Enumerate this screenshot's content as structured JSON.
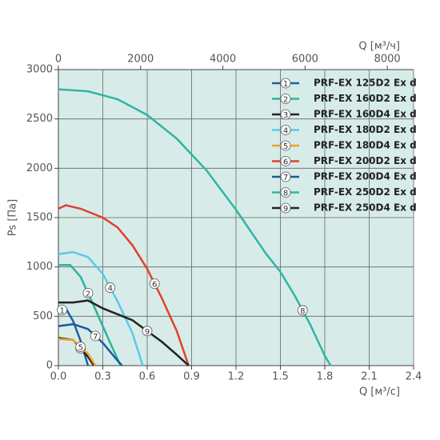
{
  "chart_data": {
    "type": "line",
    "x_label": "Q [м³/с]",
    "x2_label": "Q [м³/ч]",
    "y_label": "Ps [Па]",
    "xlim": [
      0,
      2.4
    ],
    "xticks": [
      {
        "value": 0,
        "label": "0.0"
      },
      0.3,
      0.6,
      0.9,
      1.2,
      1.5,
      1.8,
      2.1,
      2.4
    ],
    "x2lim": [
      0,
      8640
    ],
    "x2ticks": [
      0,
      2000,
      4000,
      6000,
      8000
    ],
    "ylim": [
      0,
      3000
    ],
    "yticks": [
      0,
      500,
      1000,
      1500,
      2000,
      2500,
      3000
    ],
    "grid": true,
    "background": "#d7ece8",
    "legend": "top-right",
    "series": [
      {
        "marker": "1",
        "name": "PRF-EX 125D2 Ex d",
        "color": "#1f5fa8",
        "x": [
          0,
          0.05,
          0.1,
          0.15,
          0.2
        ],
        "values": [
          550,
          580,
          450,
          250,
          0
        ]
      },
      {
        "marker": "2",
        "name": "PRF-EX 160D2 Ex d",
        "color": "#2bb3a0",
        "x": [
          0,
          0.08,
          0.15,
          0.25,
          0.35,
          0.42
        ],
        "values": [
          1020,
          1020,
          900,
          570,
          230,
          0
        ]
      },
      {
        "marker": "3",
        "name": "PRF-EX 160D4 Ex d",
        "color": "#222222",
        "x": [
          0,
          0.1,
          0.2,
          0.24
        ],
        "values": [
          280,
          260,
          90,
          0
        ]
      },
      {
        "marker": "4",
        "name": "PRF-EX 180D2 Ex d",
        "color": "#5bc8e8",
        "x": [
          0,
          0.1,
          0.2,
          0.3,
          0.4,
          0.5,
          0.57
        ],
        "values": [
          1130,
          1150,
          1100,
          930,
          650,
          330,
          0
        ]
      },
      {
        "marker": "5",
        "name": "PRF-EX 180D4 Ex d",
        "color": "#f0a030",
        "x": [
          0,
          0.1,
          0.2,
          0.25
        ],
        "values": [
          270,
          260,
          120,
          0
        ]
      },
      {
        "marker": "6",
        "name": "PRF-EX 200D2 Ex d",
        "color": "#e04030",
        "x": [
          0,
          0.05,
          0.15,
          0.3,
          0.4,
          0.5,
          0.6,
          0.7,
          0.8,
          0.88
        ],
        "values": [
          1590,
          1625,
          1590,
          1500,
          1400,
          1220,
          980,
          680,
          350,
          0
        ]
      },
      {
        "marker": "7",
        "name": "PRF-EX 200D4 Ex d",
        "color": "#1a5a9a",
        "x": [
          0,
          0.1,
          0.2,
          0.3,
          0.4,
          0.43
        ],
        "values": [
          400,
          420,
          370,
          230,
          50,
          0
        ]
      },
      {
        "marker": "8",
        "name": "PRF-EX 250D2 Ex d",
        "color": "#30b5a5",
        "x": [
          0,
          0.2,
          0.4,
          0.6,
          0.8,
          1.0,
          1.2,
          1.4,
          1.5,
          1.6,
          1.7,
          1.8,
          1.84
        ],
        "values": [
          2800,
          2780,
          2700,
          2540,
          2300,
          1980,
          1580,
          1140,
          950,
          700,
          420,
          100,
          0
        ]
      },
      {
        "marker": "9",
        "name": "PRF-EX 250D4 Ex d",
        "color": "#222222",
        "x": [
          0,
          0.1,
          0.2,
          0.3,
          0.5,
          0.7,
          0.8,
          0.88
        ],
        "values": [
          640,
          640,
          660,
          580,
          460,
          240,
          110,
          0
        ]
      }
    ]
  }
}
